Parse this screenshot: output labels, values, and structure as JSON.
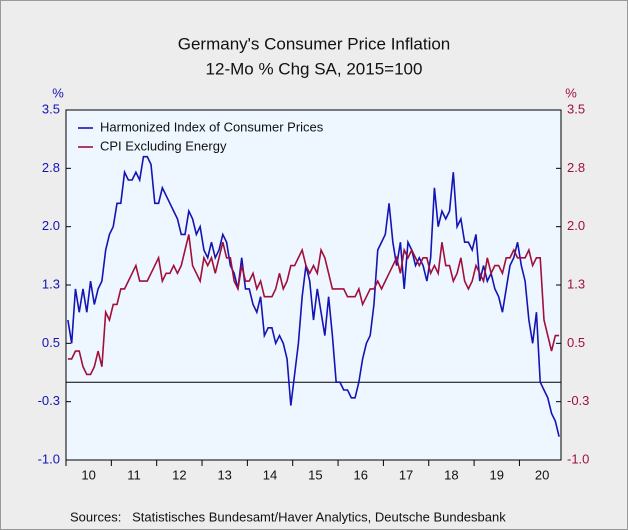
{
  "chart_data": {
    "type": "line",
    "title": "Germany's Consumer Price Inflation",
    "subtitle": "12-Mo % Chg   SA, 2015=100",
    "ylabel": "%",
    "y2label": "%",
    "source": "Sources:   Statistisches Bundesamt/Haver Analytics, Deutsche Bundesbank",
    "ylim": [
      -1.0,
      3.5
    ],
    "yticks": [
      {
        "value": -1.0,
        "label": "-1.0"
      },
      {
        "value": -0.25,
        "label": "-0.3"
      },
      0.5,
      {
        "value": 1.25,
        "label": "1.3"
      },
      {
        "value": 2.0,
        "label": "2.0"
      },
      {
        "value": 2.75,
        "label": "2.8"
      },
      3.5
    ],
    "y2lim": [
      -1.0,
      3.5
    ],
    "y2ticks": [
      {
        "value": -1.0,
        "label": "-1.0"
      },
      {
        "value": -0.25,
        "label": "-0.3"
      },
      0.5,
      {
        "value": 1.25,
        "label": "1.3"
      },
      {
        "value": 2.0,
        "label": "2.0"
      },
      {
        "value": 2.75,
        "label": "2.8"
      },
      3.5
    ],
    "legend": "top-left",
    "categories": [
      null,
      null,
      null,
      null,
      null,
      "10",
      null,
      null,
      null,
      null,
      null,
      null,
      null,
      null,
      null,
      null,
      null,
      "11",
      null,
      null,
      null,
      null,
      null,
      null,
      null,
      null,
      null,
      null,
      null,
      "12",
      null,
      null,
      null,
      null,
      null,
      null,
      null,
      null,
      null,
      null,
      null,
      "13",
      null,
      null,
      null,
      null,
      null,
      null,
      null,
      null,
      null,
      null,
      null,
      "14",
      null,
      null,
      null,
      null,
      null,
      null,
      null,
      null,
      null,
      null,
      null,
      "15",
      null,
      null,
      null,
      null,
      null,
      null,
      null,
      null,
      null,
      null,
      null,
      "16",
      null,
      null,
      null,
      null,
      null,
      null,
      null,
      null,
      null,
      null,
      null,
      "17",
      null,
      null,
      null,
      null,
      null,
      null,
      null,
      null,
      null,
      null,
      null,
      "18",
      null,
      null,
      null,
      null,
      null,
      null,
      null,
      null,
      null,
      null,
      null,
      "19",
      null,
      null,
      null,
      null,
      null,
      null,
      null,
      null,
      null,
      null,
      null,
      "20",
      null,
      null,
      null,
      null,
      null
    ],
    "series": [
      {
        "name": "Harmonized Index of Consumer Prices",
        "color": "#1414b4",
        "values": [
          0.8,
          0.5,
          1.2,
          0.9,
          1.2,
          0.9,
          1.3,
          1.0,
          1.2,
          1.3,
          1.7,
          1.9,
          2.0,
          2.3,
          2.3,
          2.7,
          2.6,
          2.6,
          2.7,
          2.6,
          2.9,
          2.9,
          2.8,
          2.3,
          2.3,
          2.5,
          2.4,
          2.3,
          2.2,
          2.1,
          1.9,
          1.9,
          2.2,
          2.1,
          1.9,
          2.0,
          1.7,
          1.6,
          1.8,
          1.6,
          1.7,
          1.9,
          1.8,
          1.5,
          1.4,
          1.2,
          1.6,
          1.2,
          1.2,
          1.0,
          0.9,
          1.1,
          0.6,
          0.7,
          0.7,
          0.5,
          0.6,
          0.5,
          0.3,
          -0.3,
          0.1,
          0.5,
          1.1,
          1.5,
          1.3,
          0.8,
          1.2,
          0.9,
          0.6,
          1.1,
          0.6,
          0.0,
          0.0,
          -0.1,
          -0.1,
          -0.2,
          -0.2,
          0.0,
          0.3,
          0.5,
          0.6,
          1.0,
          1.7,
          1.8,
          1.9,
          2.3,
          1.8,
          1.5,
          1.8,
          1.2,
          1.8,
          1.7,
          1.5,
          1.6,
          1.5,
          1.3,
          1.6,
          2.5,
          2.0,
          2.2,
          2.1,
          2.2,
          2.7,
          2.0,
          2.1,
          1.8,
          1.8,
          1.7,
          1.9,
          1.3,
          1.5,
          1.3,
          1.4,
          1.2,
          1.1,
          0.9,
          1.2,
          1.5,
          1.6,
          1.8,
          1.5,
          1.3,
          0.8,
          0.5,
          0.9,
          0.0,
          -0.1,
          -0.2,
          -0.4,
          -0.5,
          -0.7
        ]
      },
      {
        "name": "CPI Excluding Energy",
        "color": "#a0103a",
        "axis": "y2",
        "values": [
          0.3,
          0.3,
          0.4,
          0.4,
          0.2,
          0.1,
          0.1,
          0.2,
          0.4,
          0.2,
          0.9,
          0.8,
          1.0,
          1.0,
          1.2,
          1.2,
          1.3,
          1.4,
          1.5,
          1.3,
          1.3,
          1.3,
          1.4,
          1.5,
          1.6,
          1.3,
          1.4,
          1.4,
          1.5,
          1.4,
          1.5,
          1.7,
          1.9,
          1.5,
          1.4,
          1.3,
          1.6,
          1.5,
          1.6,
          1.4,
          1.6,
          1.8,
          1.6,
          1.6,
          1.3,
          1.2,
          1.5,
          1.3,
          1.3,
          1.4,
          1.2,
          1.3,
          1.1,
          1.1,
          1.1,
          1.2,
          1.4,
          1.2,
          1.3,
          1.5,
          1.5,
          1.6,
          1.7,
          1.5,
          1.4,
          1.5,
          1.4,
          1.7,
          1.6,
          1.4,
          1.2,
          1.2,
          1.2,
          1.2,
          1.1,
          1.1,
          1.1,
          1.2,
          1.0,
          1.1,
          1.2,
          1.2,
          1.3,
          1.2,
          1.3,
          1.4,
          1.5,
          1.6,
          1.4,
          1.7,
          1.6,
          1.7,
          1.6,
          1.5,
          1.6,
          1.6,
          1.4,
          1.5,
          1.4,
          1.8,
          1.5,
          1.5,
          1.3,
          1.4,
          1.6,
          1.3,
          1.2,
          1.3,
          1.5,
          1.4,
          1.3,
          1.6,
          1.4,
          1.5,
          1.5,
          1.4,
          1.6,
          1.6,
          1.7,
          1.6,
          1.6,
          1.6,
          1.7,
          1.5,
          1.6,
          1.6,
          0.8,
          0.6,
          0.4,
          0.6,
          0.6
        ]
      }
    ]
  }
}
